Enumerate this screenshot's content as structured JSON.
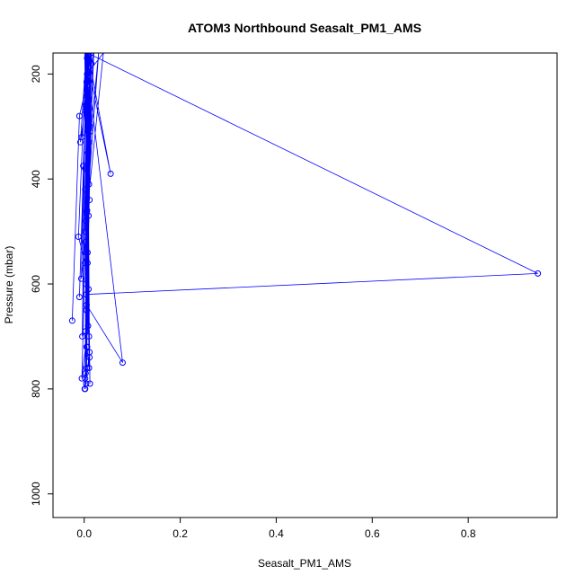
{
  "chart_data": {
    "type": "line",
    "title": "ATOM3 Northbound Seasalt_PM1_AMS",
    "xlabel": "Seasalt_PM1_AMS",
    "ylabel": "Pressure (mbar)",
    "xlim": [
      -0.065,
      0.985
    ],
    "ylim": [
      1045,
      160
    ],
    "y_reversed": true,
    "x_ticks": [
      0.0,
      0.2,
      0.4,
      0.6,
      0.8
    ],
    "x_tick_labels": [
      "0.0",
      "0.2",
      "0.4",
      "0.6",
      "0.8"
    ],
    "y_ticks": [
      200,
      400,
      600,
      800,
      1000
    ],
    "y_tick_labels": [
      "200",
      "400",
      "600",
      "800",
      "1000"
    ],
    "grid": false,
    "legend": "none",
    "series": [
      {
        "color": "#0000ff",
        "marker": "open-circle",
        "line": true,
        "x": [
          -0.025,
          -0.01,
          0.02,
          0.005,
          -0.005,
          0.01,
          0.003,
          0.015,
          -0.008,
          0.004,
          0.012,
          0.006,
          -0.002,
          0.008,
          0.002,
          0.03,
          0.005,
          0.01,
          0.003,
          0.055,
          0.008,
          0.002,
          0.006,
          0.04,
          0.004,
          0.009,
          0.001,
          0.007,
          0.003,
          0.012,
          0.006,
          0.02,
          0.002,
          -0.012,
          0.004,
          0.011,
          0.006,
          0.003,
          0.015,
          0.008,
          0.002,
          -0.006,
          0.005,
          0.01,
          0.004,
          0.945,
          0.007,
          -0.01,
          0.002,
          0.012,
          0.005,
          0.018,
          0.003,
          0.008,
          0.006,
          0.01,
          0.002,
          0.014,
          0.005,
          0.009,
          0.003,
          -0.004,
          0.007,
          0.011,
          0.004,
          0.008,
          0.005,
          0.015,
          0.003,
          0.009,
          0.006,
          0.002,
          0.01,
          0.004,
          0.012,
          0.007,
          0.003,
          0.08,
          0.005,
          0.009,
          0.002,
          0.011,
          0.006,
          0.004,
          0.013,
          -0.005,
          0.008,
          0.003,
          0.01,
          0.006,
          0.001
        ],
        "y": [
          670,
          280,
          160,
          215,
          320,
          160,
          260,
          180,
          330,
          160,
          300,
          170,
          375,
          160,
          420,
          160,
          465,
          250,
          160,
          390,
          160,
          500,
          200,
          160,
          480,
          290,
          160,
          540,
          160,
          310,
          460,
          160,
          560,
          510,
          160,
          440,
          230,
          600,
          160,
          350,
          520,
          590,
          160,
          410,
          620,
          580,
          160,
          625,
          270,
          160,
          650,
          160,
          690,
          310,
          160,
          700,
          380,
          160,
          720,
          470,
          160,
          700,
          160,
          740,
          540,
          160,
          760,
          160,
          770,
          610,
          160,
          780,
          330,
          160,
          790,
          560,
          160,
          750,
          640,
          160,
          800,
          730,
          160,
          790,
          160,
          780,
          680,
          160,
          760,
          720,
          800
        ]
      }
    ]
  }
}
